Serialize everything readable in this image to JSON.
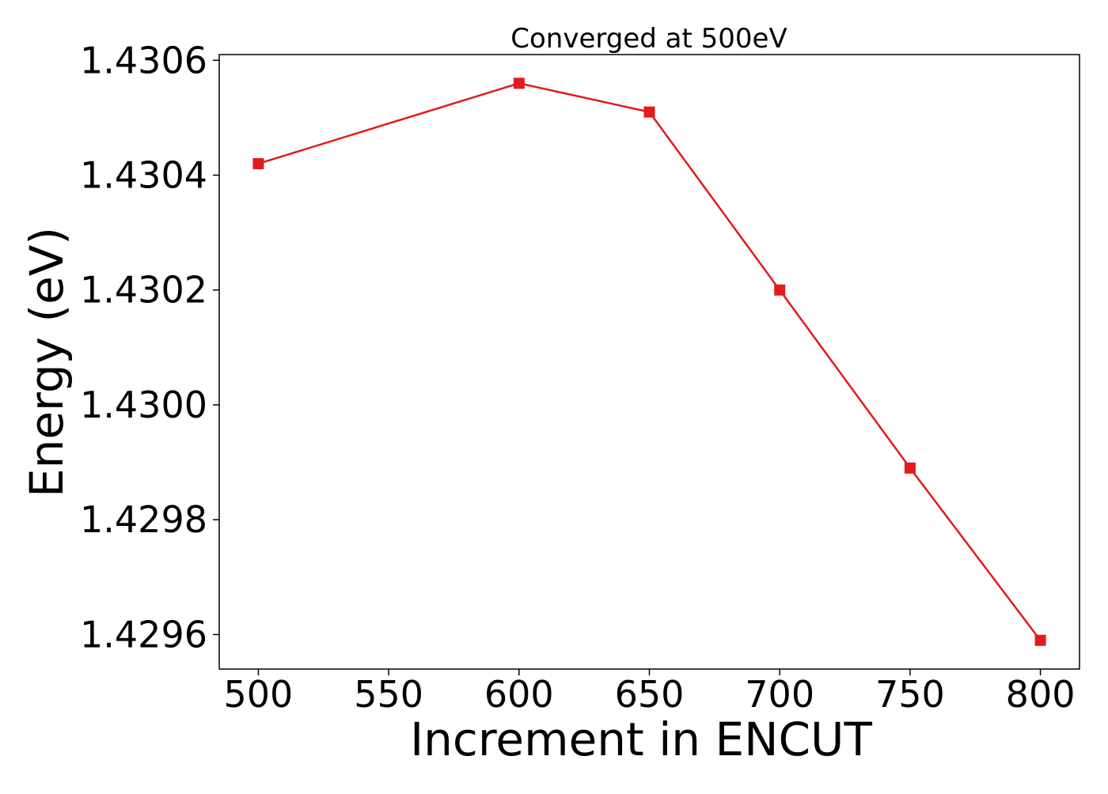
{
  "chart_data": {
    "type": "line",
    "title": "Converged at 500eV",
    "xlabel": "Increment in ENCUT",
    "ylabel": "Energy (eV)",
    "x": [
      500,
      600,
      650,
      700,
      750,
      800
    ],
    "series": [
      {
        "values": [
          1.43042,
          1.43056,
          1.43051,
          1.4302,
          1.42989,
          1.42959
        ],
        "color": "#e41a1c",
        "marker": "square"
      }
    ],
    "xlim": [
      485,
      815
    ],
    "ylim": [
      1.42954,
      1.43061
    ],
    "xticks": [
      "500",
      "550",
      "600",
      "650",
      "700",
      "750",
      "800"
    ],
    "yticks": [
      "1.4296",
      "1.4298",
      "1.4300",
      "1.4302",
      "1.4304",
      "1.4306"
    ],
    "grid": false,
    "legend": "none"
  }
}
